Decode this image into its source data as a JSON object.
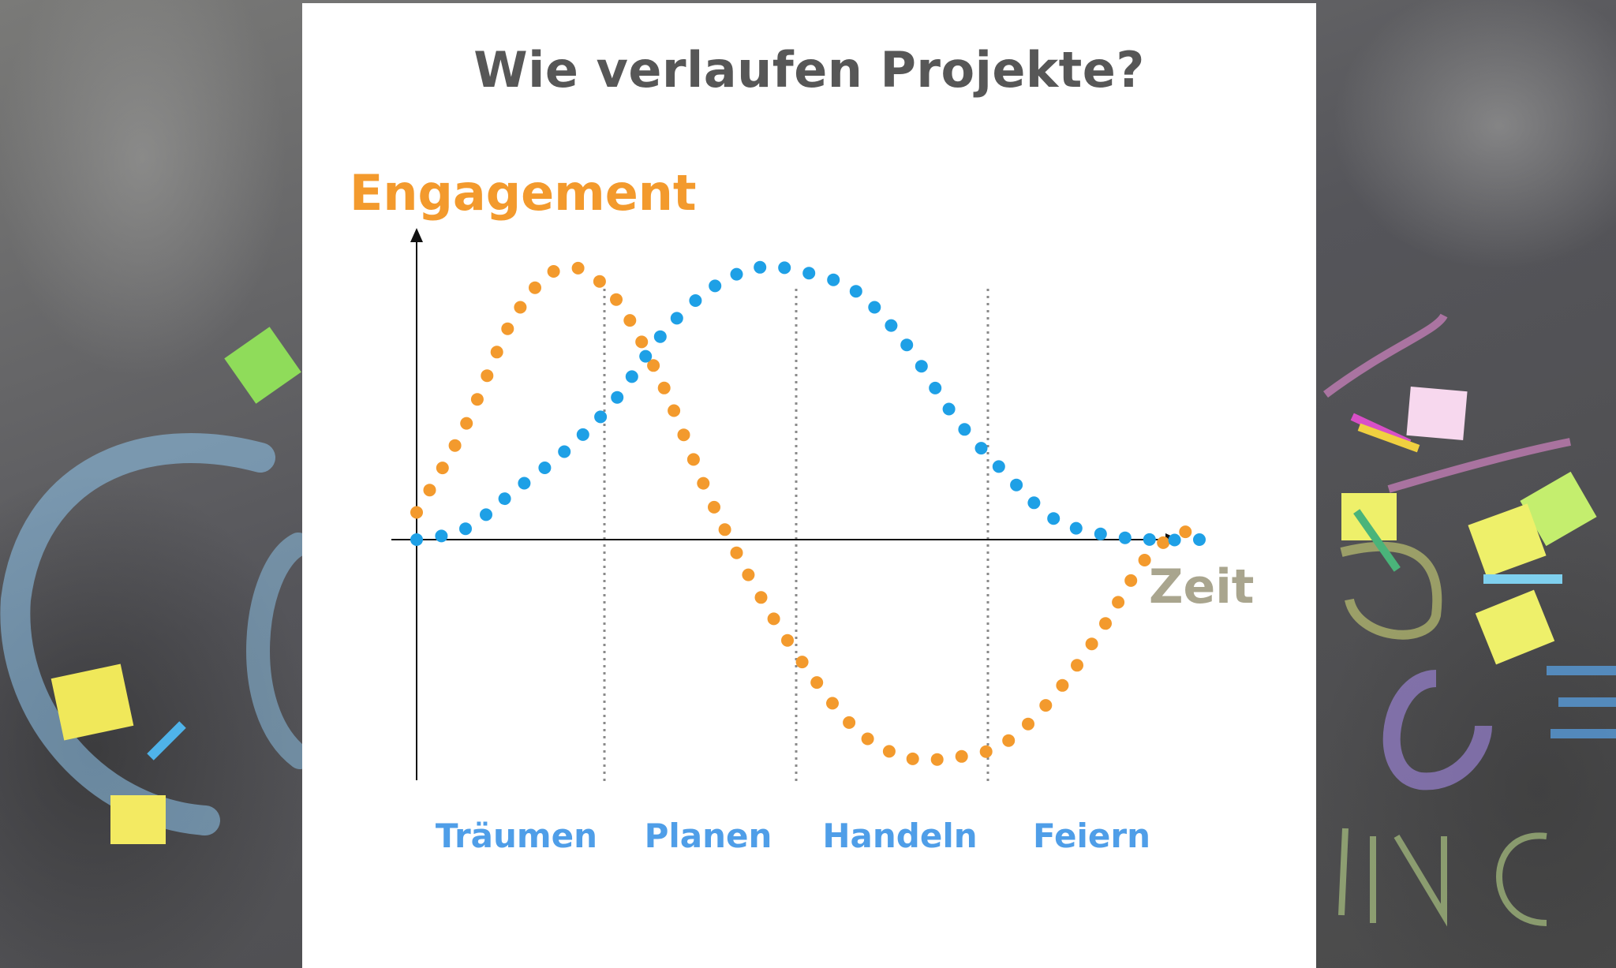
{
  "chart_data": {
    "type": "line",
    "title": "Wie verlaufen Projekte?",
    "ylabel": "Engagement",
    "xlabel": "Zeit",
    "phases": [
      "Träumen",
      "Planen",
      "Handeln",
      "Feiern"
    ],
    "x": [
      0,
      0.25,
      0.5,
      0.75,
      1,
      1.25,
      1.5,
      1.75,
      2,
      2.25,
      2.5,
      2.75,
      3,
      3.25,
      3.5,
      3.75,
      4
    ],
    "series": [
      {
        "color": "#f39a2d",
        "values": [
          0.1,
          0.42,
          0.82,
          1.0,
          0.9,
          0.58,
          0.15,
          -0.2,
          -0.48,
          -0.7,
          -0.8,
          -0.8,
          -0.75,
          -0.58,
          -0.33,
          -0.05,
          0.05
        ]
      },
      {
        "color": "#1ea0e6",
        "values": [
          0.0,
          0.04,
          0.18,
          0.32,
          0.5,
          0.75,
          0.92,
          1.0,
          0.98,
          0.91,
          0.72,
          0.45,
          0.25,
          0.08,
          0.02,
          0.0,
          0.0
        ]
      }
    ],
    "ylim": [
      -1,
      1
    ],
    "grid": false,
    "phase_dividers": [
      1,
      2,
      3
    ]
  },
  "colors": {
    "ylabel": "#f39a2d",
    "xlabel": "#a9a58e",
    "phase_label": "#4f9ee8",
    "divider": "#8a8a8a",
    "axis": "#111111"
  }
}
